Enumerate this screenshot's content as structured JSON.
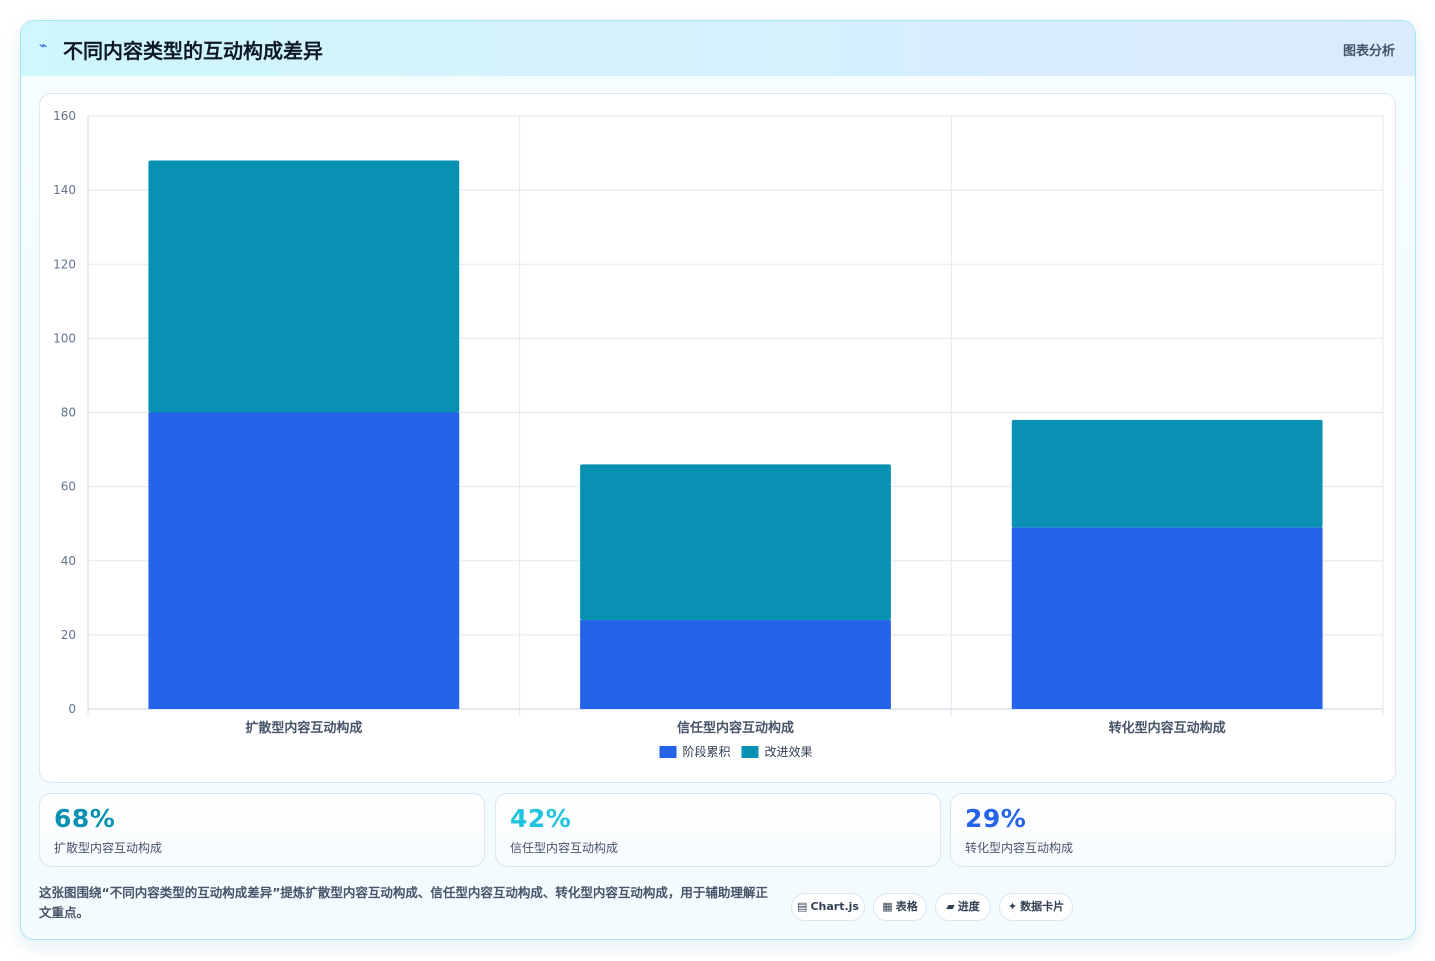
{
  "header": {
    "icon": "chart-trend-icon",
    "title": "不同内容类型的互动构成差异",
    "link_label": "图表分析"
  },
  "chart_data": {
    "type": "bar",
    "stacked": true,
    "categories": [
      "扩散型内容互动构成",
      "信任型内容互动构成",
      "转化型内容互动构成"
    ],
    "series": [
      {
        "name": "阶段累积",
        "values": [
          80,
          24,
          49
        ],
        "color": "#2563eb"
      },
      {
        "name": "改进效果",
        "values": [
          68,
          42,
          29
        ],
        "color": "#0891b2"
      }
    ],
    "ylim": [
      0,
      160
    ],
    "yticks": [
      0,
      20,
      40,
      60,
      80,
      100,
      120,
      140,
      160
    ],
    "grid": true,
    "legend": "bottom"
  },
  "stats": [
    {
      "value": "68%",
      "label": "扩散型内容互动构成",
      "color": "#0891b2"
    },
    {
      "value": "42%",
      "label": "信任型内容互动构成",
      "color": "#22c3dd"
    },
    {
      "value": "29%",
      "label": "转化型内容互动构成",
      "color": "#2563eb"
    }
  ],
  "caption": "这张图围绕“不同内容类型的互动构成差异”提炼扩散型内容互动构成、信任型内容互动构成、转化型内容互动构成，用于辅助理解正文重点。",
  "chips": [
    {
      "icon": "chart-icon",
      "glyph": "▤",
      "label": "Chart.js"
    },
    {
      "icon": "table-icon",
      "glyph": "▦",
      "label": "表格"
    },
    {
      "icon": "progress-icon",
      "glyph": "▰",
      "label": "进度"
    },
    {
      "icon": "sparkle-icon",
      "glyph": "✦",
      "label": "数据卡片"
    }
  ]
}
